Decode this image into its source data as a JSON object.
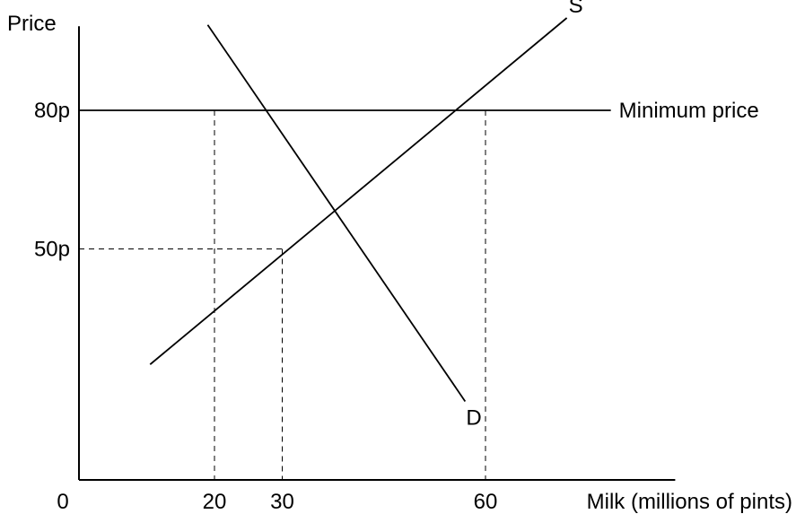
{
  "chart_data": {
    "type": "line",
    "ylabel": "Price",
    "xlabel": "Milk (millions of pints)",
    "x_ticks": [
      {
        "value": 0,
        "label": "0"
      },
      {
        "value": 20,
        "label": "20"
      },
      {
        "value": 30,
        "label": "30"
      },
      {
        "value": 60,
        "label": "60"
      }
    ],
    "y_ticks": [
      {
        "value": 50,
        "label": "50p"
      },
      {
        "value": 80,
        "label": "80p"
      }
    ],
    "xlim": [
      0,
      88
    ],
    "ylim": [
      0,
      98
    ],
    "grid": false,
    "series": [
      {
        "name": "S",
        "points": [
          [
            10.5,
            25
          ],
          [
            72,
            100
          ]
        ]
      },
      {
        "name": "D",
        "points": [
          [
            19,
            98.5
          ],
          [
            57,
            17
          ]
        ]
      }
    ],
    "horizontal_line": {
      "label": "Minimum price",
      "y": 80,
      "x_end": 78.5
    },
    "guides": [
      {
        "x": 20,
        "y": 80
      },
      {
        "x": 30,
        "y": 50
      },
      {
        "x": 60,
        "y": 80
      }
    ]
  }
}
